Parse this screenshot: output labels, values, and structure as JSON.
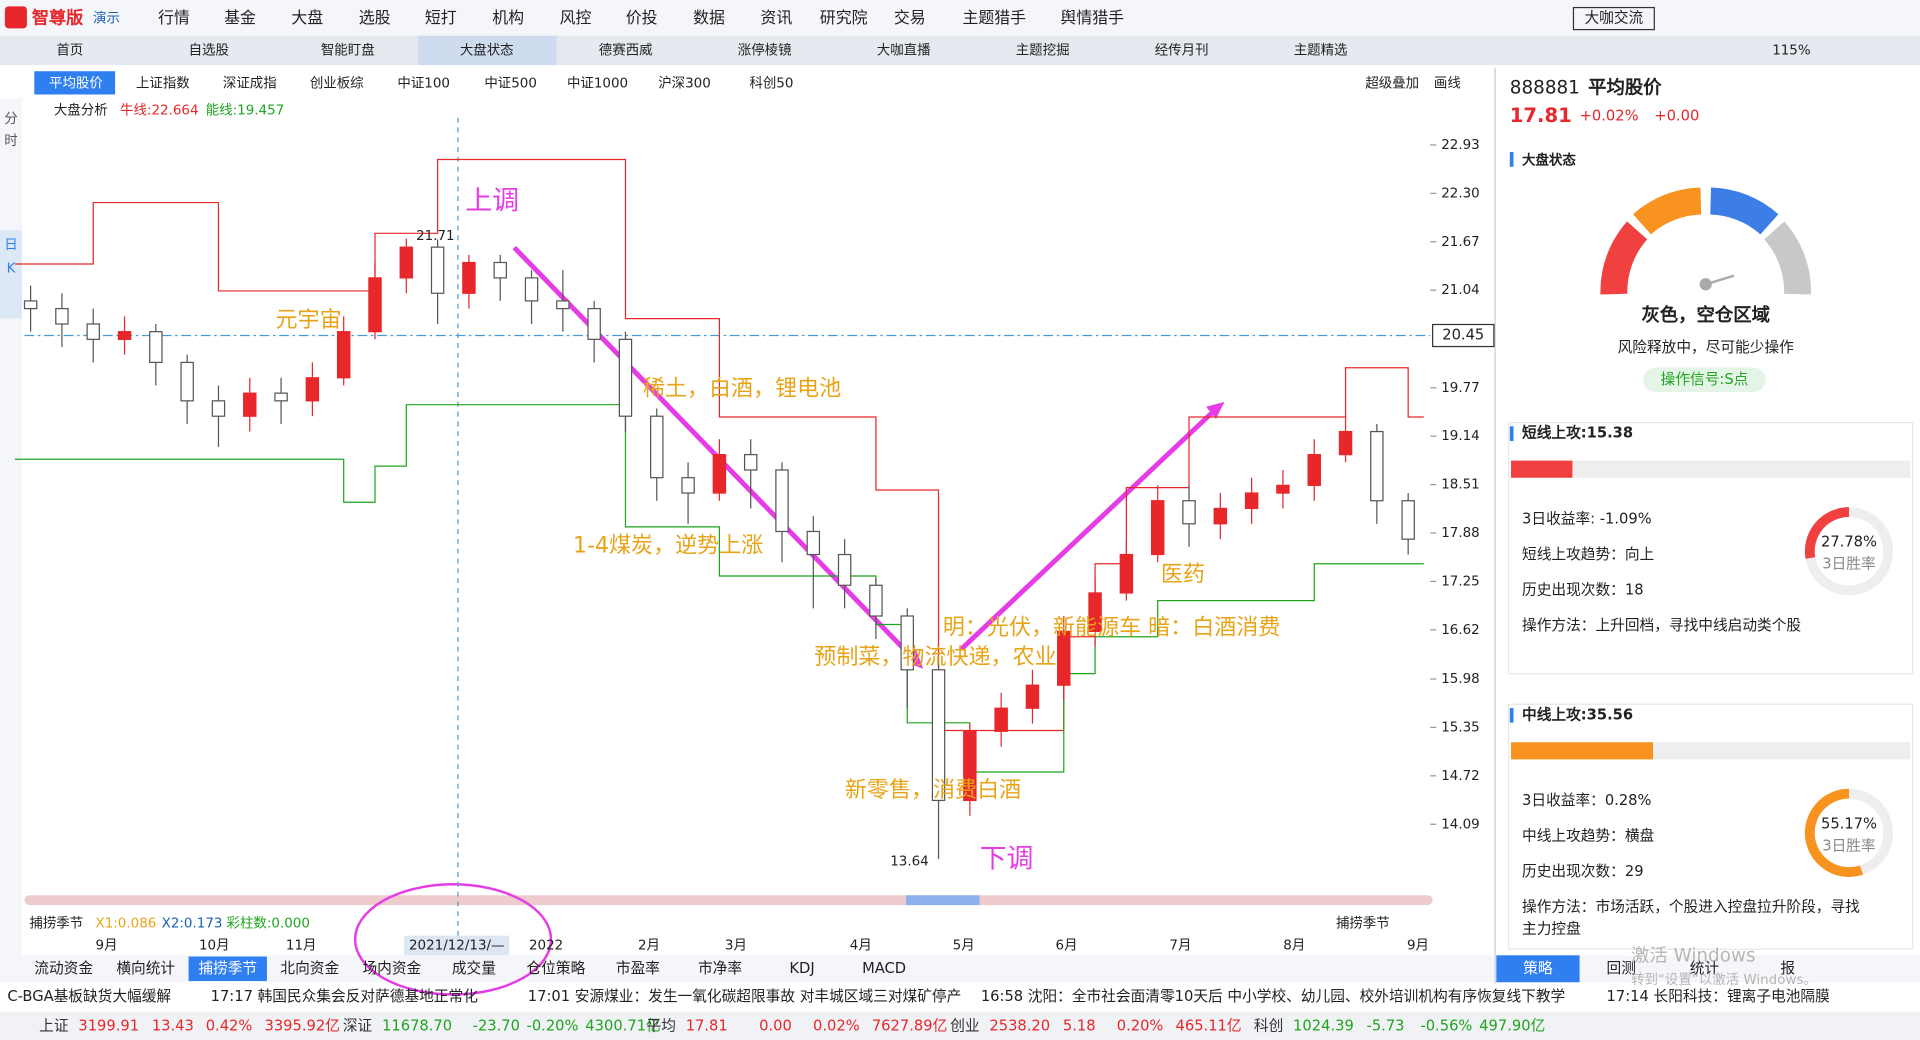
{
  "top_menu": {
    "logo": "智尊版",
    "badge": "演示",
    "items": [
      "行情",
      "基金",
      "大盘",
      "选股",
      "短打",
      "机构",
      "风控",
      "价投",
      "数据",
      "资讯",
      "研究院",
      "交易",
      "主题猎手",
      "舆情猎手"
    ],
    "chat_button": "大咖交流",
    "zoom": "115%"
  },
  "tabs": [
    "首页",
    "自选股",
    "智能盯盘",
    "大盘状态",
    "德赛西威",
    "涨停棱镜",
    "大咖直播",
    "主题挖掘",
    "经传月刊",
    "主题精选"
  ],
  "toolbar": {
    "buttons": [
      "平均股价",
      "上证指数",
      "深证成指",
      "创业板综",
      "中证100",
      "中证500",
      "中证1000",
      "沪深300",
      "科创50"
    ],
    "right": [
      "超级叠加",
      "画线"
    ]
  },
  "side_labels": [
    "分",
    "时",
    "日",
    "K"
  ],
  "indicator": {
    "name": "大盘分析",
    "line1": "牛线:22.664",
    "line2": "能线:19.457"
  },
  "chart_data": {
    "type": "candlestick",
    "open": [
      20.9,
      20.8,
      20.6,
      20.4,
      20.5,
      20.1,
      19.6,
      19.4,
      19.7,
      19.6,
      19.9,
      20.5,
      21.2,
      21.6,
      21.0,
      21.4,
      21.2,
      20.9,
      20.8,
      20.4,
      19.4,
      18.6,
      18.4,
      18.9,
      18.7,
      17.9,
      17.6,
      17.2,
      16.8,
      16.1,
      14.4,
      15.3,
      15.6,
      15.9,
      16.6,
      17.1,
      17.6,
      18.3,
      18.0,
      18.2,
      18.4,
      18.5,
      18.9,
      19.2,
      18.3
    ],
    "high": [
      21.1,
      21.0,
      20.8,
      20.7,
      20.6,
      20.2,
      19.8,
      19.9,
      19.9,
      20.1,
      20.7,
      21.4,
      21.71,
      21.7,
      21.5,
      21.5,
      21.3,
      21.3,
      20.9,
      20.5,
      19.5,
      18.8,
      19.1,
      19.1,
      18.8,
      18.1,
      17.8,
      17.3,
      16.9,
      16.2,
      15.4,
      15.8,
      16.1,
      16.8,
      17.3,
      17.8,
      18.5,
      18.5,
      18.4,
      18.6,
      18.7,
      19.1,
      19.4,
      19.3,
      18.4
    ],
    "low": [
      20.5,
      20.3,
      20.1,
      20.2,
      19.8,
      19.3,
      19.0,
      19.2,
      19.3,
      19.4,
      19.8,
      20.4,
      21.0,
      20.6,
      20.8,
      20.9,
      20.6,
      20.5,
      20.1,
      19.2,
      18.3,
      18.0,
      18.3,
      18.2,
      17.5,
      16.9,
      16.9,
      16.5,
      15.6,
      13.64,
      14.2,
      15.1,
      15.4,
      15.7,
      16.4,
      17.0,
      17.5,
      17.7,
      17.8,
      18.0,
      18.2,
      18.3,
      18.8,
      18.0,
      17.6
    ],
    "close": [
      20.8,
      20.6,
      20.4,
      20.5,
      20.1,
      19.6,
      19.4,
      19.7,
      19.6,
      19.9,
      20.5,
      21.2,
      21.6,
      21.0,
      21.4,
      21.2,
      20.9,
      20.8,
      20.4,
      19.4,
      18.6,
      18.4,
      18.9,
      18.7,
      17.9,
      17.6,
      17.2,
      16.8,
      16.1,
      14.4,
      15.3,
      15.6,
      15.9,
      16.6,
      17.1,
      17.6,
      18.3,
      18.0,
      18.2,
      18.4,
      18.5,
      18.9,
      19.2,
      18.3,
      17.8
    ],
    "upper_band": [
      21.38,
      21.38,
      22.18,
      22.18,
      22.18,
      22.18,
      21.03,
      21.03,
      21.03,
      21.03,
      21.03,
      21.78,
      21.78,
      22.74,
      22.74,
      22.74,
      22.74,
      22.74,
      22.74,
      20.67,
      20.67,
      20.67,
      19.39,
      19.39,
      19.39,
      19.39,
      19.39,
      18.44,
      18.44,
      15.31,
      15.31,
      15.31,
      15.31,
      16.53,
      17.48,
      18.47,
      18.47,
      19.39,
      19.39,
      19.39,
      19.39,
      19.39,
      20.03,
      20.03,
      19.39
    ],
    "lower_band": [
      18.84,
      18.84,
      18.84,
      18.84,
      18.84,
      18.84,
      18.84,
      18.84,
      18.84,
      18.84,
      18.28,
      18.75,
      19.55,
      19.55,
      19.55,
      19.55,
      19.55,
      19.55,
      19.55,
      17.96,
      17.96,
      17.96,
      17.32,
      17.32,
      17.32,
      17.32,
      17.32,
      16.69,
      15.41,
      15.41,
      14.77,
      14.77,
      14.77,
      16.05,
      16.53,
      16.53,
      17.0,
      17.0,
      17.0,
      17.0,
      17.0,
      17.48,
      17.48,
      17.48,
      17.48
    ],
    "colors": {
      "up": "#e8272b",
      "down": "#555555",
      "upper_band": "#e8272b",
      "lower_band": "#1fa51f"
    },
    "ylim": [
      13.5,
      23.22
    ],
    "yticks": [
      22.93,
      {
        "value": 22.3,
        "label": "22.30"
      },
      21.67,
      21.04,
      19.77,
      19.14,
      18.51,
      17.88,
      17.25,
      16.62,
      15.98,
      15.35,
      14.72,
      14.09
    ],
    "crosshair_price": 20.45,
    "high_label": 21.71,
    "low_label": 13.64,
    "months": [
      "9月",
      "10月",
      "11月",
      "2022",
      "2月",
      "3月",
      "4月",
      "5月",
      "6月",
      "7月",
      "8月",
      "9月"
    ],
    "crosshair_date": "2021/12/13/—",
    "annotations": [
      "上调",
      "元宇宙",
      "稀土，白酒，锂电池",
      "1-4煤炭，逆势上涨",
      "预制菜，物流快递，农业",
      "明：光伏，新能源车 暗：白酒消费",
      "新零售，消费白酒",
      "下调",
      "医药"
    ]
  },
  "sub_indicator": {
    "name": "捕捞季节",
    "x1": "X1:0.086",
    "x2": "X2:0.173",
    "bars": "彩柱数:0.000",
    "right": "捕捞季节"
  },
  "bottom_tabs": [
    "流动资金",
    "横向统计",
    "捕捞季节",
    "北向资金",
    "场内资金",
    "成交量",
    "仓位策略",
    "市盈率",
    "市净率",
    "KDJ",
    "MACD"
  ],
  "news": [
    "C-BGA基板缺货大幅缓解",
    "17:17 韩国民众集会反对萨德基地正常化",
    "17:01 安源煤业：发生一氧化碳超限事故 对丰城区域三对煤矿停产",
    "16:58 沈阳：全市社会面清零10天后 中小学校、幼儿园、校外培训机构有序恢复线下教学",
    "17:14 长阳科技：锂离子电池隔膜"
  ],
  "indices": [
    [
      "上证",
      "3199.91",
      "13.43",
      "0.42%",
      "3395.92亿"
    ],
    [
      "深证",
      "11678.70",
      "-23.70",
      "-0.20%",
      "4300.71亿"
    ],
    [
      "平均",
      "17.81",
      "0.00",
      "0.02%",
      "7627.89亿"
    ],
    [
      "创业",
      "2538.20",
      "5.18",
      "0.20%",
      "465.11亿"
    ],
    [
      "科创",
      "1024.39",
      "-5.73",
      "-0.56%",
      "497.90亿"
    ]
  ],
  "panel": {
    "code": "888881",
    "name": "平均股价",
    "price": "17.81",
    "pct": "+0.02%",
    "change": "+0.00",
    "state_title": "大盘状态",
    "state": "灰色，空仓区域",
    "state_desc": "风险释放中，尽可能少操作",
    "signal": "操作信号:S点",
    "short": {
      "title": {
        "value": 15.38,
        "label": "短线上攻:15.38"
      },
      "lines": [
        "3日收益率: -1.09%",
        "短线上攻趋势：向上",
        "历史出现次数：18",
        "操作方法：上升回档，寻找中线启动类个股"
      ],
      "rate": {
        "value": 27.78,
        "label": "27.78%"
      },
      "rate_name": "3日胜率"
    },
    "mid": {
      "title": {
        "value": 35.56,
        "label": "中线上攻:35.56"
      },
      "lines": [
        "3日收益率：0.28%",
        "中线上攻趋势：横盘",
        "历史出现次数：29",
        "操作方法：市场活跃，个股进入控盘拉升阶段，寻找",
        "主力控盘"
      ],
      "rate": {
        "value": 55.17,
        "label": "55.17%"
      },
      "rate_name": "3日胜率"
    },
    "tabs": [
      "策略",
      "回测",
      "统计",
      "报"
    ]
  },
  "watermark": [
    "激活 Windows",
    "转到“设置”以激活 Windows。"
  ]
}
